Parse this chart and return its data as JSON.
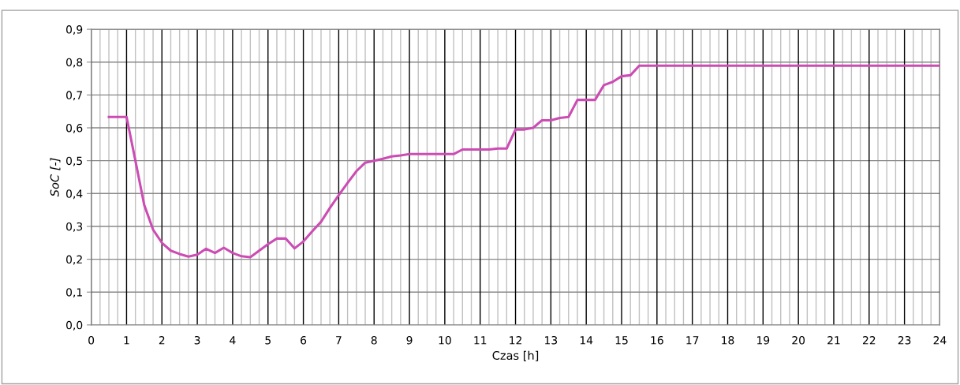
{
  "chart_data": {
    "type": "line",
    "xlabel": "Czas [h]",
    "ylabel": "SoC [-]",
    "x": [
      0.5,
      0.75,
      1.0,
      1.25,
      1.5,
      1.75,
      2.0,
      2.25,
      2.5,
      2.75,
      3.0,
      3.25,
      3.5,
      3.75,
      4.0,
      4.25,
      4.5,
      4.75,
      5.0,
      5.25,
      5.5,
      5.75,
      6.0,
      6.25,
      6.5,
      6.75,
      7.0,
      7.25,
      7.5,
      7.75,
      8.0,
      8.25,
      8.5,
      8.75,
      9.0,
      9.25,
      9.5,
      9.75,
      10.0,
      10.25,
      10.5,
      10.75,
      11.0,
      11.25,
      11.5,
      11.75,
      12.0,
      12.25,
      12.5,
      12.75,
      13.0,
      13.25,
      13.5,
      13.75,
      14.0,
      14.25,
      14.5,
      14.75,
      15.0,
      15.25,
      15.5,
      16,
      17,
      18,
      19,
      20,
      21,
      22,
      23,
      24
    ],
    "series": [
      {
        "color": "#cc4cb4",
        "values": [
          0.633,
          0.633,
          0.633,
          0.5,
          0.365,
          0.29,
          0.25,
          0.226,
          0.216,
          0.208,
          0.214,
          0.232,
          0.219,
          0.235,
          0.219,
          0.209,
          0.206,
          0.226,
          0.246,
          0.263,
          0.263,
          0.233,
          0.254,
          0.285,
          0.314,
          0.356,
          0.395,
          0.432,
          0.468,
          0.494,
          0.5,
          0.506,
          0.513,
          0.516,
          0.52,
          0.52,
          0.52,
          0.52,
          0.52,
          0.52,
          0.534,
          0.534,
          0.534,
          0.534,
          0.537,
          0.537,
          0.595,
          0.595,
          0.6,
          0.623,
          0.623,
          0.63,
          0.633,
          0.685,
          0.685,
          0.685,
          0.73,
          0.74,
          0.757,
          0.76,
          0.789,
          0.789,
          0.789,
          0.789,
          0.789,
          0.789,
          0.789,
          0.789,
          0.789,
          0.789
        ]
      }
    ],
    "xlim": [
      0,
      24
    ],
    "xticks": [
      0,
      1,
      2,
      3,
      4,
      5,
      6,
      7,
      8,
      9,
      10,
      11,
      12,
      13,
      14,
      15,
      16,
      17,
      18,
      19,
      20,
      21,
      22,
      23,
      24
    ],
    "ylim": [
      0,
      0.9
    ],
    "yticks": [
      {
        "value": 0,
        "label": "0,0"
      },
      {
        "value": 0.1,
        "label": "0,1"
      },
      {
        "value": 0.2,
        "label": "0,2"
      },
      {
        "value": 0.3,
        "label": "0,3"
      },
      {
        "value": 0.4,
        "label": "0,4"
      },
      {
        "value": 0.5,
        "label": "0,5"
      },
      {
        "value": 0.6,
        "label": "0,6"
      },
      {
        "value": 0.7,
        "label": "0,7"
      },
      {
        "value": 0.8,
        "label": "0,8"
      },
      {
        "value": 0.9,
        "label": "0,9"
      }
    ],
    "grid": true,
    "marker": "none",
    "line_style": "solid",
    "legend": false
  }
}
